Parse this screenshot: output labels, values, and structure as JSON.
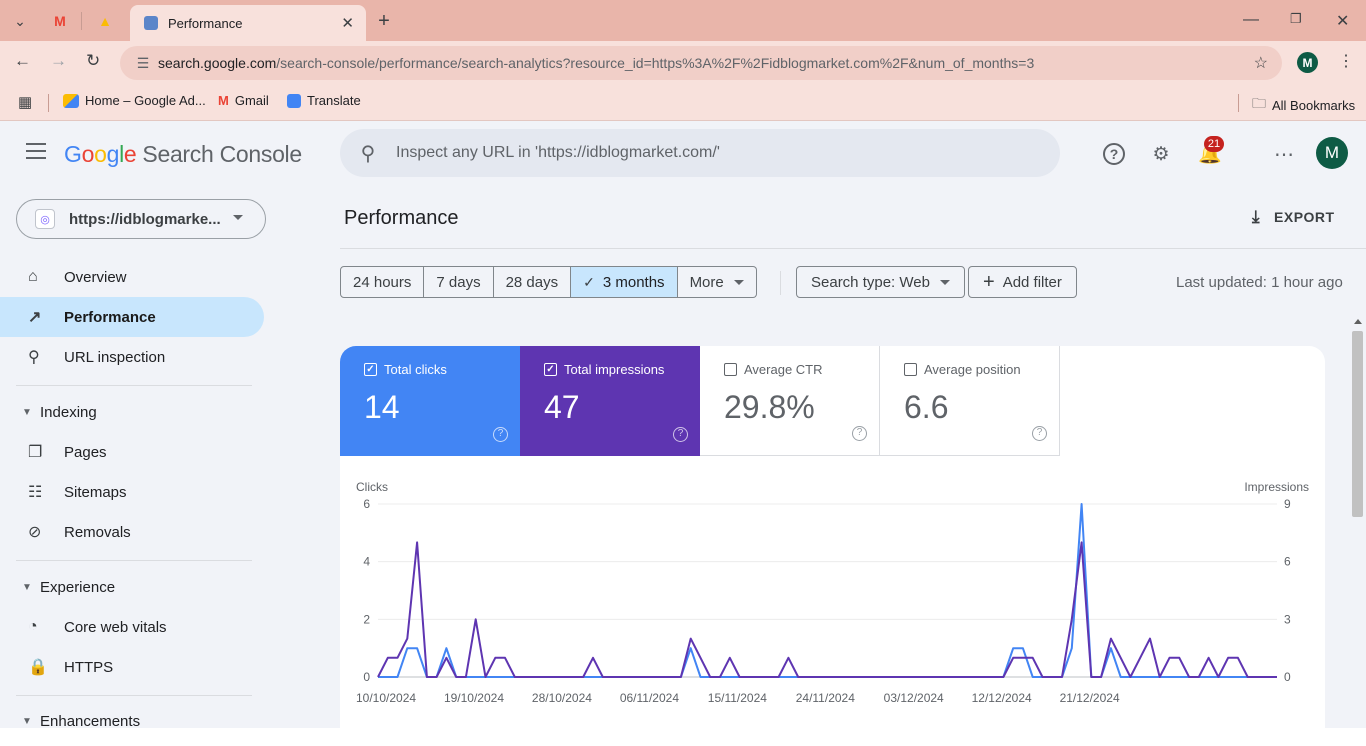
{
  "browser": {
    "tab_title": "Performance",
    "url_host": "search.google.com",
    "url_path": "/search-console/performance/search-analytics?resource_id=https%3A%2F%2Fidblogmarket.com%2F&num_of_months=3",
    "profile_initial": "M",
    "bookmarks": [
      {
        "label": "Home – Google Ad...",
        "icon": "google-ads-icon"
      },
      {
        "label": "Gmail",
        "icon": "gmail-icon"
      },
      {
        "label": "Translate",
        "icon": "translate-icon"
      }
    ],
    "all_bookmarks": "All Bookmarks"
  },
  "header": {
    "logo_google": [
      "G",
      "o",
      "o",
      "g",
      "l",
      "e"
    ],
    "logo_product": "Search Console",
    "search_placeholder": "Inspect any URL in 'https://idblogmarket.com/'",
    "notifications_count": "21",
    "avatar_initial": "M"
  },
  "sidebar": {
    "property": "https://idblogmarke...",
    "items": [
      {
        "label": "Overview",
        "icon": "home-icon"
      },
      {
        "label": "Performance",
        "icon": "trending-icon",
        "active": true
      },
      {
        "label": "URL inspection",
        "icon": "search-icon"
      }
    ],
    "indexing": {
      "title": "Indexing",
      "items": [
        {
          "label": "Pages",
          "icon": "pages-icon"
        },
        {
          "label": "Sitemaps",
          "icon": "sitemap-icon"
        },
        {
          "label": "Removals",
          "icon": "removals-icon"
        }
      ]
    },
    "experience": {
      "title": "Experience",
      "items": [
        {
          "label": "Core web vitals",
          "icon": "gauge-icon"
        },
        {
          "label": "HTTPS",
          "icon": "lock-icon"
        }
      ]
    },
    "enhancements": {
      "title": "Enhancements"
    }
  },
  "main": {
    "title": "Performance",
    "export_label": "EXPORT",
    "date_chips": [
      "24 hours",
      "7 days",
      "28 days",
      "3 months",
      "More"
    ],
    "selected_chip": "3 months",
    "search_type": "Search type: Web",
    "add_filter": "Add filter",
    "last_updated": "Last updated: 1 hour ago",
    "metrics": [
      {
        "label": "Total clicks",
        "value": "14",
        "checked": true,
        "color": "#4285f4"
      },
      {
        "label": "Total impressions",
        "value": "47",
        "checked": true,
        "color": "#5e35b1"
      },
      {
        "label": "Average CTR",
        "value": "29.8%",
        "checked": false
      },
      {
        "label": "Average position",
        "value": "6.6",
        "checked": false
      }
    ]
  },
  "chart_data": {
    "type": "line",
    "ylabel_left": "Clicks",
    "ylabel_right": "Impressions",
    "y_left_ticks": [
      0,
      2,
      4,
      6
    ],
    "y_right_ticks": [
      0,
      3,
      6,
      9
    ],
    "ylim_left": [
      0,
      6
    ],
    "ylim_right": [
      0,
      9
    ],
    "x_tick_labels": [
      "10/10/2024",
      "19/10/2024",
      "28/10/2024",
      "06/11/2024",
      "15/11/2024",
      "24/11/2024",
      "03/12/2024",
      "12/12/2024",
      "21/12/2024"
    ],
    "x_tick_positions": [
      0,
      9,
      18,
      27,
      36,
      45,
      54,
      63,
      72
    ],
    "grid": true,
    "series": [
      {
        "name": "Clicks",
        "axis": "left",
        "color": "#4285f4",
        "values": [
          0,
          0,
          0,
          1,
          1,
          0,
          0,
          1,
          0,
          0,
          0,
          0,
          0,
          0,
          0,
          0,
          0,
          0,
          0,
          0,
          0,
          0,
          0,
          0,
          0,
          0,
          0,
          0,
          0,
          0,
          0,
          0,
          1,
          0,
          0,
          0,
          0,
          0,
          0,
          0,
          0,
          0,
          0,
          0,
          0,
          0,
          0,
          0,
          0,
          0,
          0,
          0,
          0,
          0,
          0,
          0,
          0,
          0,
          0,
          0,
          0,
          0,
          0,
          0,
          0,
          1,
          1,
          0,
          0,
          0,
          0,
          1,
          6,
          0,
          0,
          1,
          0,
          0,
          0,
          0,
          0,
          0,
          0,
          0,
          0,
          0,
          0,
          0,
          0,
          0,
          0,
          0,
          0
        ]
      },
      {
        "name": "Impressions",
        "axis": "right",
        "color": "#5e35b1",
        "values": [
          0,
          1,
          1,
          2,
          7,
          0,
          0,
          1,
          0,
          0,
          3,
          0,
          1,
          1,
          0,
          0,
          0,
          0,
          0,
          0,
          0,
          0,
          1,
          0,
          0,
          0,
          0,
          0,
          0,
          0,
          0,
          0,
          2,
          1,
          0,
          0,
          1,
          0,
          0,
          0,
          0,
          0,
          1,
          0,
          0,
          0,
          0,
          0,
          0,
          0,
          0,
          0,
          0,
          0,
          0,
          0,
          0,
          0,
          0,
          0,
          0,
          0,
          0,
          0,
          0,
          1,
          1,
          1,
          0,
          0,
          0,
          3,
          7,
          0,
          0,
          2,
          1,
          0,
          1,
          2,
          0,
          1,
          1,
          0,
          0,
          1,
          0,
          1,
          1,
          0,
          0,
          0,
          0
        ]
      }
    ]
  }
}
